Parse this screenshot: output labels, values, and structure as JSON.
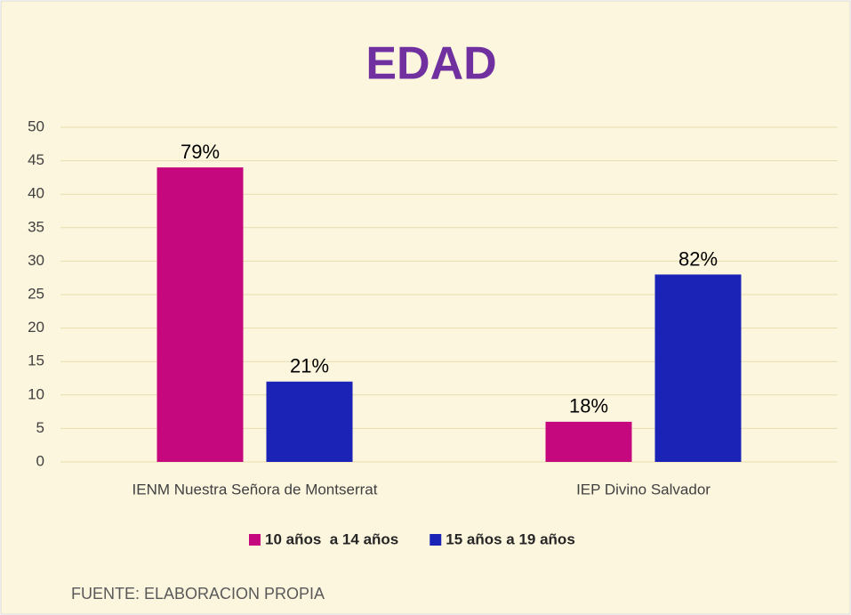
{
  "chart_data": {
    "type": "bar",
    "title": "EDAD",
    "categories": [
      "IENM Nuestra Señora de Montserrat",
      "IEP Divino Salvador"
    ],
    "series": [
      {
        "name": "10 años  a 14 años",
        "color": "#c5087d",
        "values": [
          44,
          6
        ],
        "data_labels": [
          "79%",
          "18%"
        ]
      },
      {
        "name": "15 años a 19 años",
        "color": "#1b22b6",
        "values": [
          12,
          28
        ],
        "data_labels": [
          "21%",
          "82%"
        ]
      }
    ],
    "ylim": [
      0,
      50
    ],
    "yticks": [
      0,
      5,
      10,
      15,
      20,
      25,
      30,
      35,
      40,
      45,
      50
    ],
    "grid": true,
    "legend": "bottom",
    "source": "FUENTE: ELABORACION PROPIA"
  }
}
